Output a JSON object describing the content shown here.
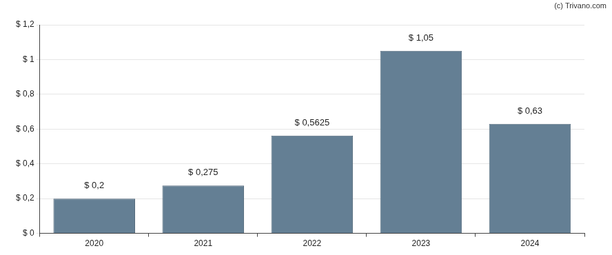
{
  "chart_data": {
    "type": "bar",
    "annotations": [
      "(c) Trivano.com"
    ],
    "categories": [
      "2020",
      "2021",
      "2022",
      "2023",
      "2024"
    ],
    "values": [
      0.2,
      0.275,
      0.5625,
      1.05,
      0.63
    ],
    "value_labels": [
      "$ 0,2",
      "$ 0,275",
      "$ 0,5625",
      "$ 1,05",
      "$ 0,63"
    ],
    "data_labels": true,
    "color": "#647f94",
    "ylim": [
      0,
      1.2
    ],
    "yticks": [
      {
        "value": 0,
        "label": "$ 0"
      },
      {
        "value": 0.2,
        "label": "$ 0,2"
      },
      {
        "value": 0.4,
        "label": "$ 0,4"
      },
      {
        "value": 0.6,
        "label": "$ 0,6"
      },
      {
        "value": 0.8,
        "label": "$ 0,8"
      },
      {
        "value": 1,
        "label": "$ 1"
      },
      {
        "value": 1.2,
        "label": "$ 1,2"
      }
    ],
    "grid": true
  }
}
